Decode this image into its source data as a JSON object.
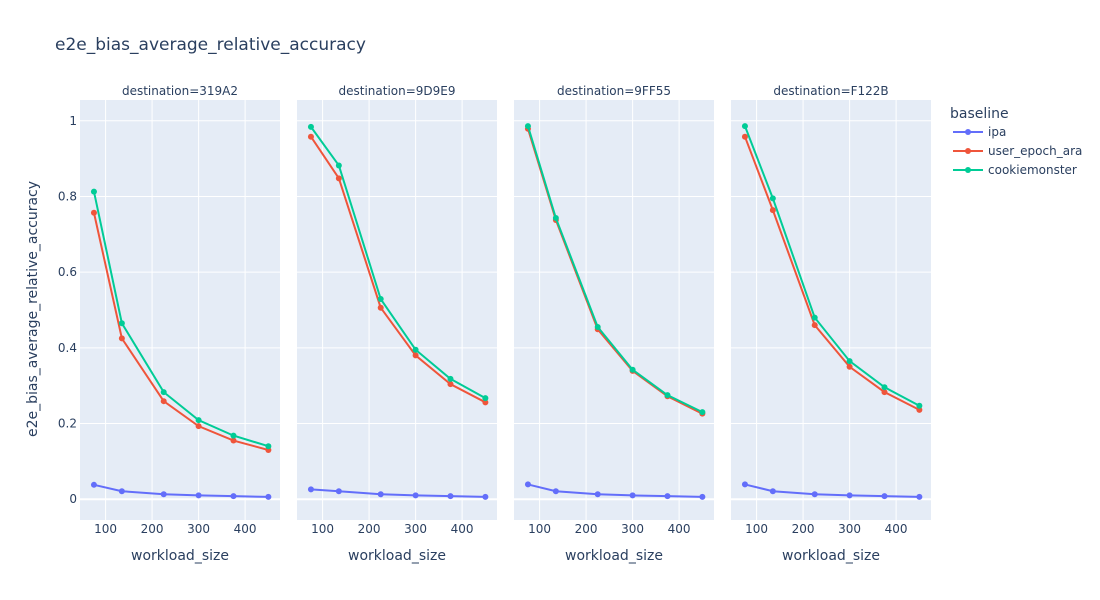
{
  "chart_data": {
    "type": "line",
    "title": "e2e_bias_average_relative_accuracy",
    "xlabel": "workload_size",
    "ylabel": "e2e_bias_average_relative_accuracy",
    "legend_title": "baseline",
    "legend_position": "right",
    "grid": true,
    "xlim": [
      45,
      475
    ],
    "ylim": [
      -0.055,
      1.055
    ],
    "x_ticks": [
      100,
      200,
      300,
      400
    ],
    "y_ticks": [
      0,
      0.2,
      0.4,
      0.6,
      0.8,
      1
    ],
    "y_tick_labels": [
      "0",
      "0.2",
      "0.4",
      "0.6",
      "0.8",
      "1"
    ],
    "x": [
      75,
      135,
      225,
      300,
      375,
      450
    ],
    "series_meta": [
      {
        "name": "ipa",
        "color": "#636efa"
      },
      {
        "name": "user_epoch_ara",
        "color": "#ef553b"
      },
      {
        "name": "cookiemonster",
        "color": "#00cc96"
      }
    ],
    "facets": [
      {
        "title": "destination=319A2",
        "series": [
          {
            "name": "ipa",
            "values": [
              0.038,
              0.021,
              0.013,
              0.01,
              0.008,
              0.006
            ]
          },
          {
            "name": "user_epoch_ara",
            "values": [
              0.757,
              0.425,
              0.259,
              0.193,
              0.155,
              0.13
            ]
          },
          {
            "name": "cookiemonster",
            "values": [
              0.813,
              0.465,
              0.283,
              0.209,
              0.168,
              0.14
            ]
          }
        ]
      },
      {
        "title": "destination=9D9E9",
        "series": [
          {
            "name": "ipa",
            "values": [
              0.026,
              0.021,
              0.013,
              0.01,
              0.008,
              0.006
            ]
          },
          {
            "name": "user_epoch_ara",
            "values": [
              0.958,
              0.848,
              0.506,
              0.38,
              0.304,
              0.256
            ]
          },
          {
            "name": "cookiemonster",
            "values": [
              0.984,
              0.882,
              0.529,
              0.395,
              0.318,
              0.267
            ]
          }
        ]
      },
      {
        "title": "destination=9FF55",
        "series": [
          {
            "name": "ipa",
            "values": [
              0.039,
              0.021,
              0.013,
              0.01,
              0.008,
              0.006
            ]
          },
          {
            "name": "user_epoch_ara",
            "values": [
              0.979,
              0.738,
              0.449,
              0.339,
              0.272,
              0.226
            ]
          },
          {
            "name": "cookiemonster",
            "values": [
              0.986,
              0.743,
              0.455,
              0.342,
              0.275,
              0.23
            ]
          }
        ]
      },
      {
        "title": "destination=F122B",
        "series": [
          {
            "name": "ipa",
            "values": [
              0.039,
              0.021,
              0.013,
              0.01,
              0.008,
              0.006
            ]
          },
          {
            "name": "user_epoch_ara",
            "values": [
              0.958,
              0.764,
              0.46,
              0.35,
              0.283,
              0.236
            ]
          },
          {
            "name": "cookiemonster",
            "values": [
              0.986,
              0.795,
              0.48,
              0.365,
              0.296,
              0.247
            ]
          }
        ]
      }
    ]
  }
}
